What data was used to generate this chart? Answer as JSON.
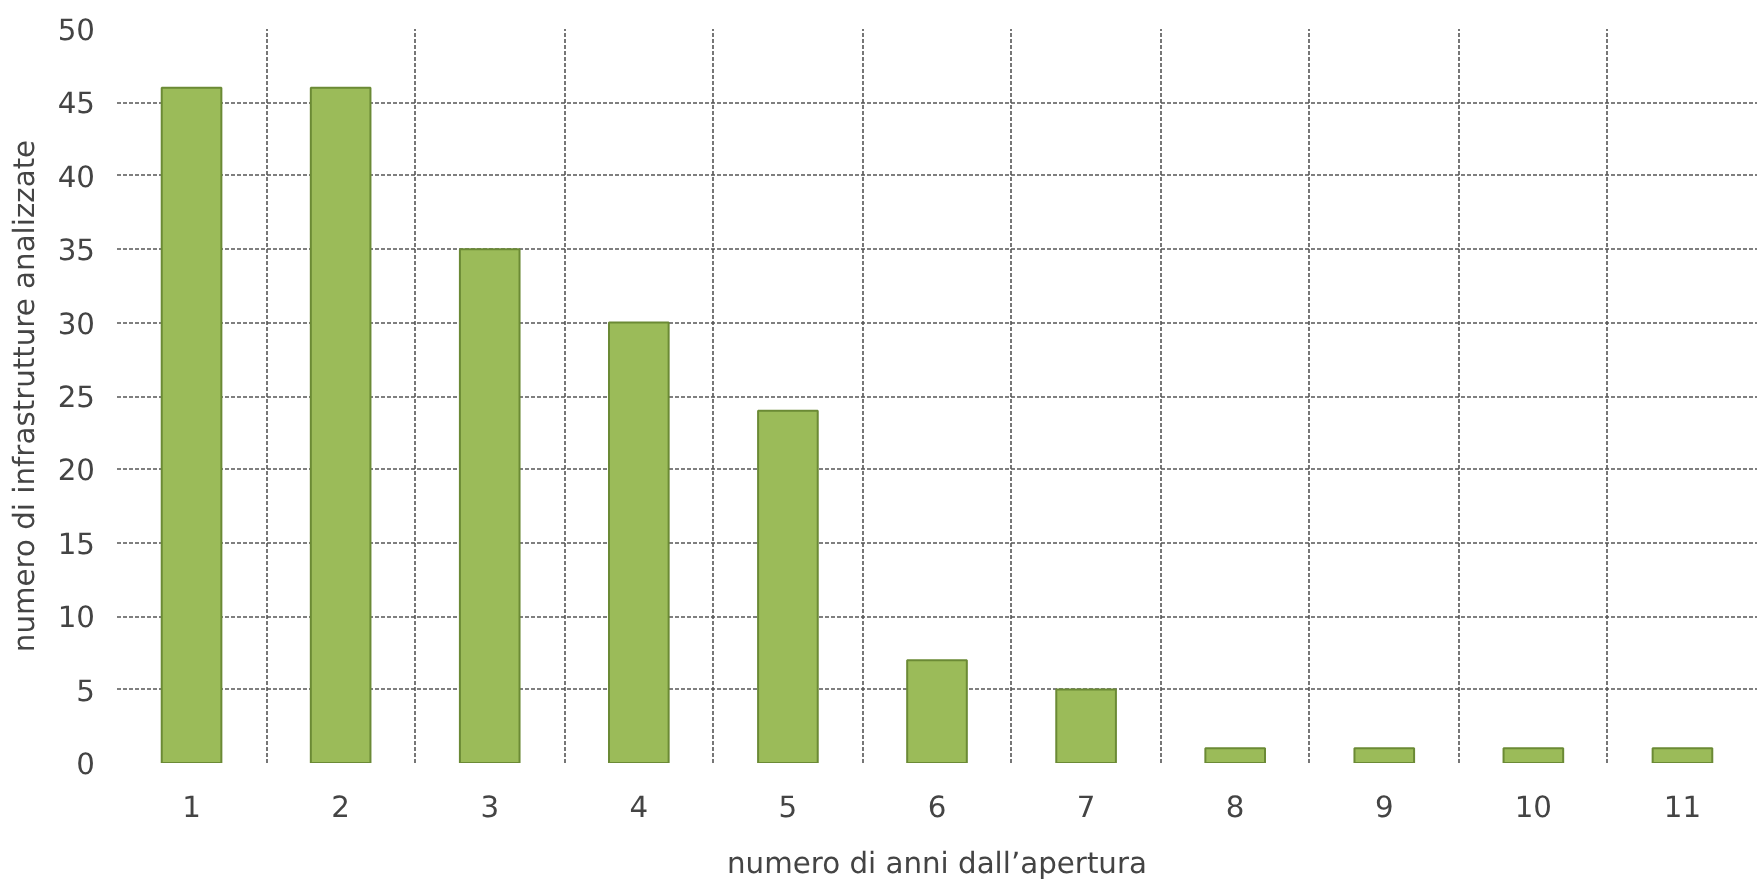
{
  "chart_data": {
    "type": "bar",
    "xlabel": "numero di anni dall’apertura",
    "ylabel": "numero di infrastrutture analizzate",
    "categories": [
      "1",
      "2",
      "3",
      "4",
      "5",
      "6",
      "7",
      "8",
      "9",
      "10",
      "11"
    ],
    "values": [
      46,
      46,
      35,
      30,
      24,
      7,
      5,
      1,
      1,
      1,
      1
    ],
    "color": "#9bbb59",
    "ylim": [
      0,
      50
    ],
    "yticks": [
      0,
      5,
      10,
      15,
      20,
      25,
      30,
      35,
      40,
      45,
      50
    ],
    "grid": true
  }
}
